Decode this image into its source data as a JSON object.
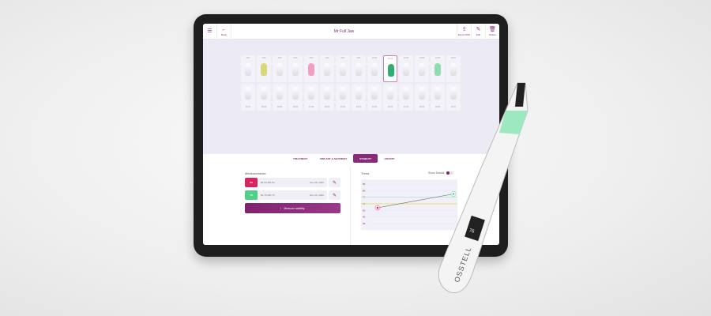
{
  "header": {
    "menu_icon": "hamburger-icon",
    "back_label": "Back",
    "title": "Mr Full Jaw",
    "export_label": "Export PDF",
    "edit_label": "Edit",
    "delete_label": "Delete"
  },
  "teeth": {
    "top": [
      "2/17",
      "3/16",
      "4/15",
      "5/14",
      "6/13",
      "7/12",
      "8/11",
      "9/21",
      "10/22",
      "11/23",
      "12/24",
      "13/25",
      "14/26",
      "15/27"
    ],
    "bottom": [
      "31/47",
      "30/46",
      "29/45",
      "28/44",
      "27/43",
      "26/42",
      "25/41",
      "24/31",
      "23/32",
      "22/33",
      "21/34",
      "20/35",
      "19/36",
      "18/37"
    ],
    "selected": "11/23",
    "highlights": {
      "3/16": "#d8d77a",
      "6/13": "#f0a0c0",
      "11/23": "#2fae6e",
      "14/26": "#8fdcaf"
    }
  },
  "tabs": [
    {
      "label": "TREATMENT"
    },
    {
      "label": "IMPLANT & ABUTMENT"
    },
    {
      "label": "STABILITY",
      "active": true
    },
    {
      "label": "HISTORY"
    }
  ],
  "measurements": {
    "label": "Measurements",
    "items": [
      {
        "value": "54",
        "detail": "BL:54 MD:54",
        "date": "Nov 28, 2020",
        "color": "#d8245e"
      },
      {
        "value": "75",
        "detail": "BL:75 MD:75",
        "date": "Dec 20, 2020",
        "color": "#4fd08a"
      }
    ],
    "measure_button": "Measure stability"
  },
  "trend": {
    "label": "Trend",
    "show_details": "Show Details",
    "show_details_on": true
  },
  "chart_data": {
    "type": "line",
    "y_ticks": [
      90,
      80,
      70,
      60,
      50,
      40,
      30
    ],
    "ylim": [
      30,
      90
    ],
    "series": [
      {
        "values": [
          54,
          75
        ],
        "colors": [
          "#d8245e",
          "#4fd08a"
        ]
      }
    ],
    "reference_lines": [
      {
        "value": 70,
        "color": "#bfe8d0"
      },
      {
        "value": 60,
        "color": "#e8e27a"
      }
    ]
  },
  "device": {
    "brand": "OSSTELL",
    "display": "76"
  }
}
